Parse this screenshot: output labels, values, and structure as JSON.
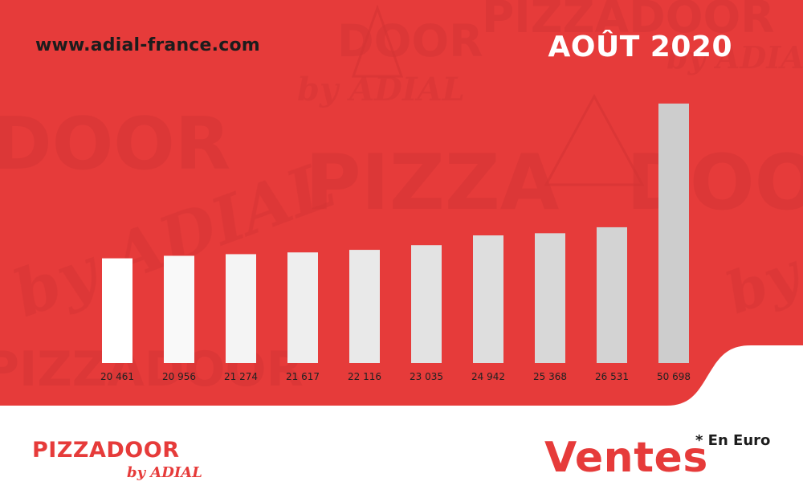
{
  "header": {
    "url": "www.adial-france.com",
    "period": "AOÛT 2020"
  },
  "footer": {
    "title": "Ventes",
    "unit_note": "* En Euro",
    "logo_word": "PIZZADOOR",
    "logo_sub": "by ADIAL"
  },
  "colors": {
    "background_red": "#e63b3a",
    "bar_light": "#ffffff",
    "bar_dark": "#cfcfcf",
    "text_dark": "#1c1c1c"
  },
  "chart_data": {
    "type": "bar",
    "title": "",
    "xlabel": "",
    "ylabel": "",
    "categories": [
      "",
      "",
      "",
      "",
      "",
      "",
      "",
      "",
      "",
      ""
    ],
    "values": [
      20461,
      20956,
      21274,
      21617,
      22116,
      23035,
      24942,
      25368,
      26531,
      50698
    ],
    "data_labels": [
      "20 461",
      "20 956",
      "21 274",
      "21 617",
      "22 116",
      "23 035",
      "24 942",
      "25 368",
      "26 531",
      "50 698"
    ],
    "ylim": [
      0,
      51000
    ],
    "grid": false,
    "legend": "none"
  }
}
